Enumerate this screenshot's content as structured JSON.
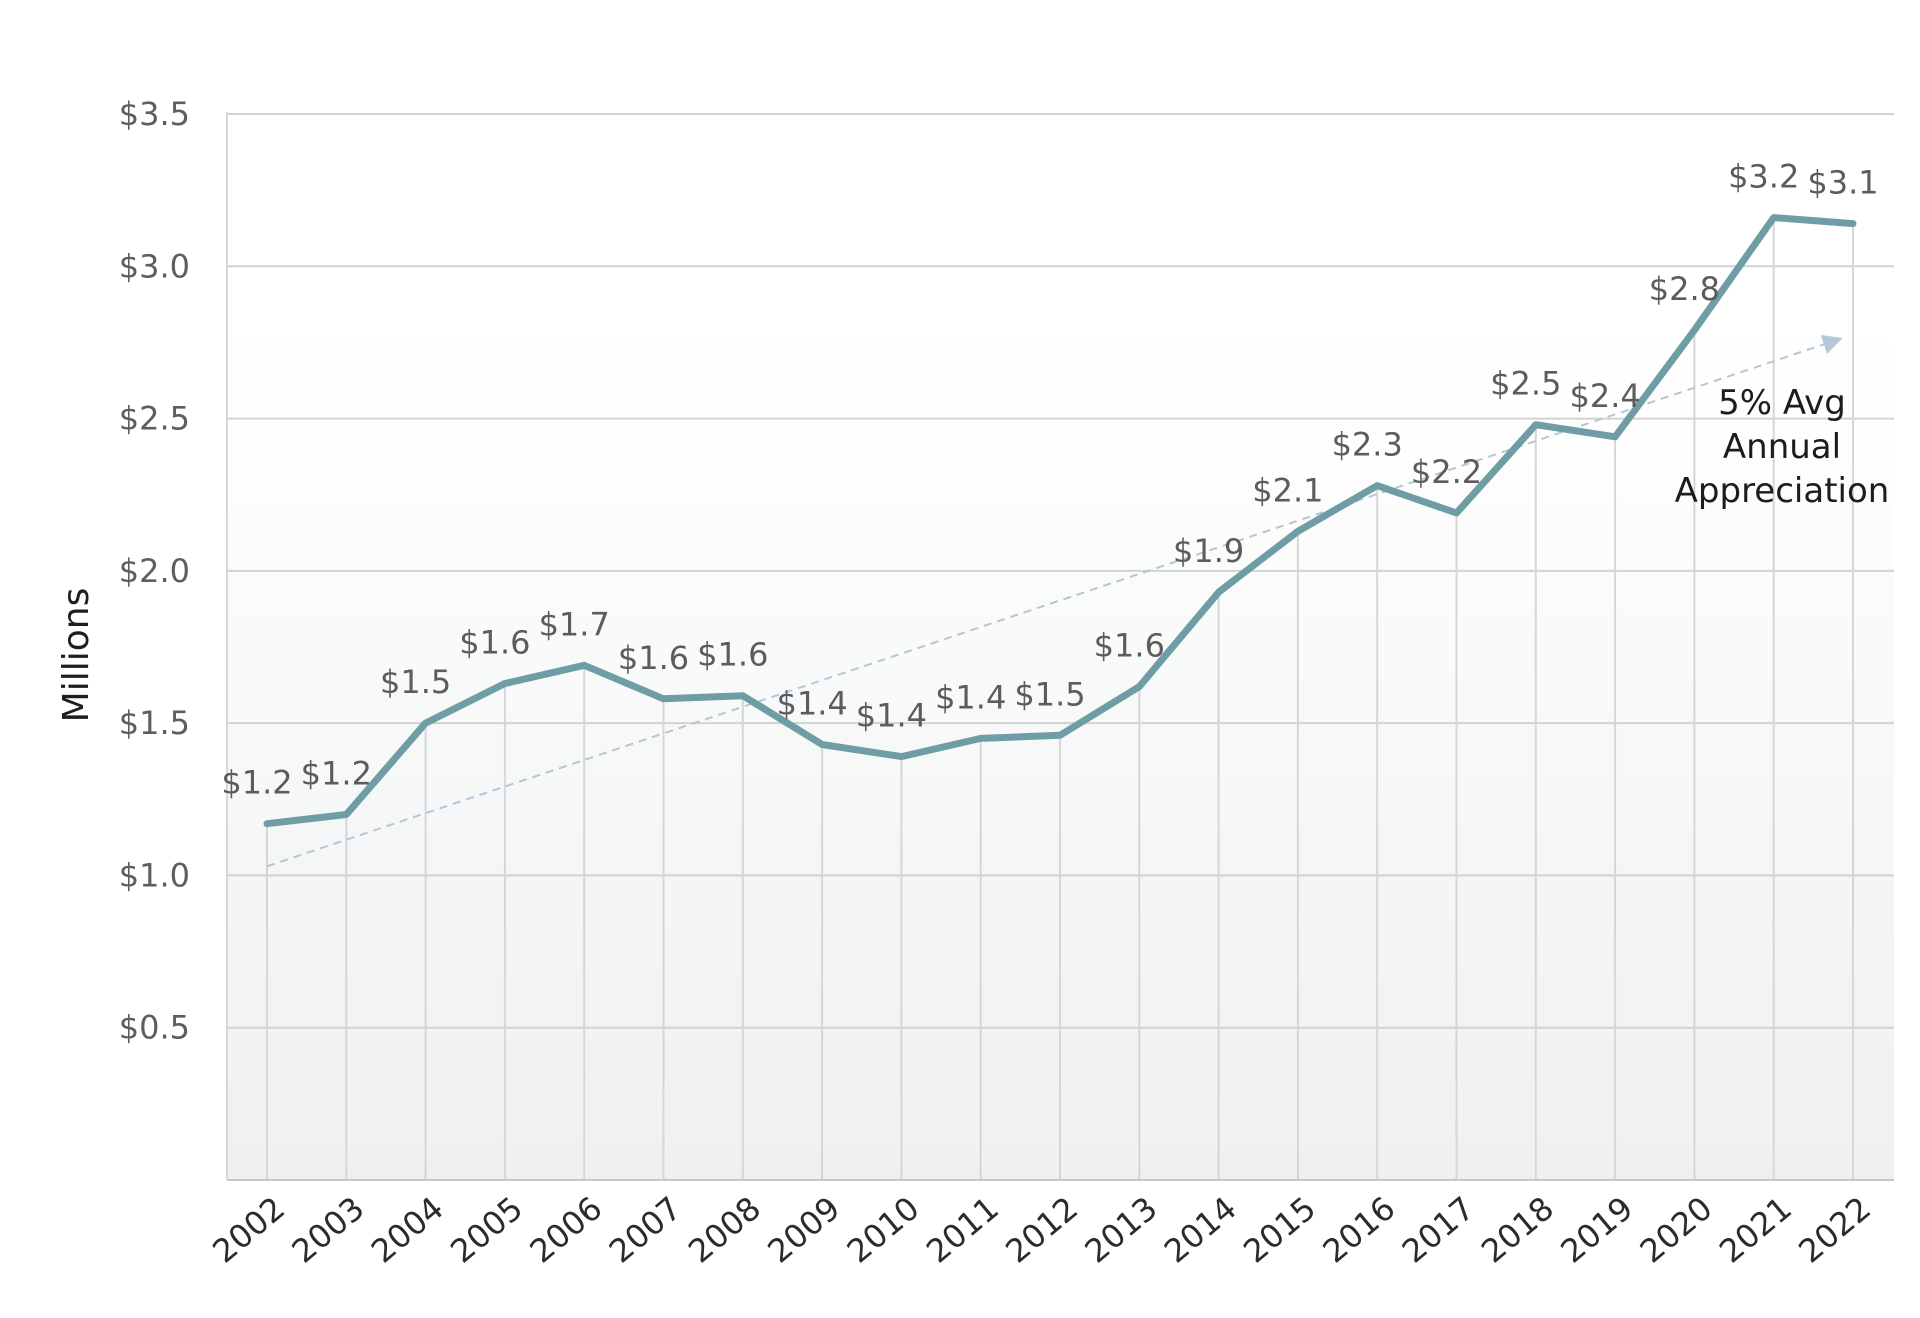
{
  "chart_data": {
    "type": "line",
    "title": "",
    "xlabel": "",
    "ylabel": "Millions",
    "ylim": [
      0,
      3.5
    ],
    "yticks": [
      0.5,
      1.0,
      1.5,
      2.0,
      2.5,
      3.0,
      3.5
    ],
    "ytick_labels": [
      "$0.5",
      "$1.0",
      "$1.5",
      "$2.0",
      "$2.5",
      "$3.0",
      "$3.5"
    ],
    "grid": true,
    "categories": [
      "2002",
      "2003",
      "2004",
      "2005",
      "2006",
      "2007",
      "2008",
      "2009",
      "2010",
      "2011",
      "2012",
      "2013",
      "2014",
      "2015",
      "2016",
      "2017",
      "2018",
      "2019",
      "2020",
      "2021",
      "2022"
    ],
    "series": [
      {
        "name": "Value",
        "color": "#6f9da6",
        "values": [
          1.17,
          1.2,
          1.5,
          1.63,
          1.69,
          1.58,
          1.59,
          1.43,
          1.39,
          1.45,
          1.46,
          1.62,
          1.93,
          2.13,
          2.28,
          2.19,
          2.48,
          2.44,
          2.79,
          3.16,
          3.14
        ],
        "labels": [
          "$1.2",
          "$1.2",
          "$1.5",
          "$1.6",
          "$1.7",
          "$1.6",
          "$1.6",
          "$1.4",
          "$1.4",
          "$1.4",
          "$1.5",
          "$1.6",
          "$1.9",
          "$2.1",
          "$2.3",
          "$2.2",
          "$2.5",
          "$2.4",
          "$2.8",
          "$3.2",
          "$3.1"
        ]
      }
    ],
    "trendline": {
      "name": "5% Avg Annual Appreciation",
      "style": "dashed-arrow",
      "color": "#b4c6d8",
      "start": {
        "x": "2002",
        "y": 1.03
      },
      "end": {
        "x": "2022",
        "y": 2.78
      }
    },
    "annotation": {
      "lines": [
        "5% Avg",
        "Annual",
        "Appreciation"
      ]
    }
  }
}
